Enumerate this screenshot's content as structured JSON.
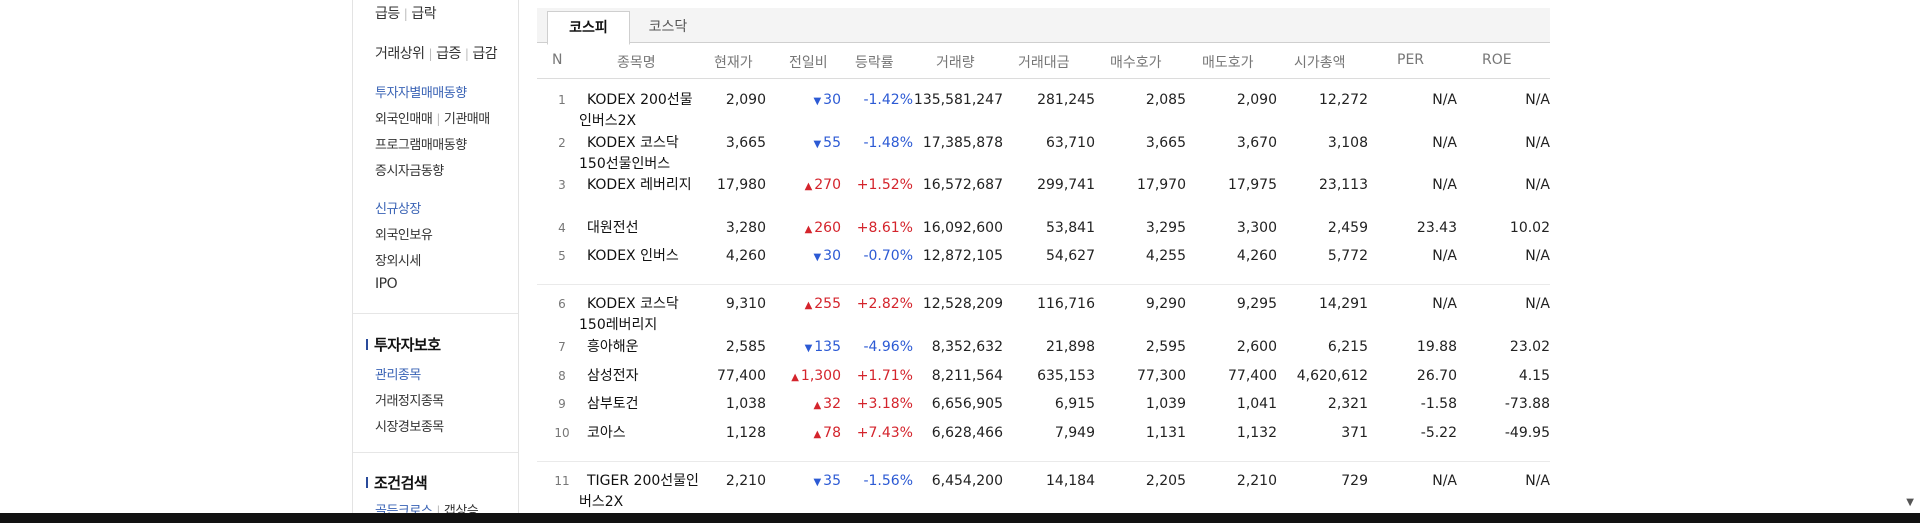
{
  "sidebar": {
    "row1": [
      "급등",
      "급락"
    ],
    "row2": [
      "거래상위",
      "급증",
      "급감"
    ],
    "investor": "투자자별매매동향",
    "row_foreign": [
      "외국인매매",
      "기관매매"
    ],
    "program": "프로그램매매동향",
    "deposit": "증시자금동향",
    "new_listing": "신규상장",
    "foreign_hold": "외국인보유",
    "otc": "장외시세",
    "ipo": "IPO",
    "sec_protect": "투자자보호",
    "managed": "관리종목",
    "halted": "거래정지종목",
    "warning": "시장경보종목",
    "sec_cond": "조건검색",
    "bottom_row": [
      "골든크로스",
      "갭상승"
    ]
  },
  "tabs": [
    "코스피",
    "코스닥"
  ],
  "columns": [
    "N",
    "종목명",
    "현재가",
    "전일비",
    "등락률",
    "거래량",
    "거래대금",
    "매수호가",
    "매도호가",
    "시가총액",
    "PER",
    "ROE"
  ],
  "rows": [
    {
      "n": "1",
      "name": "KODEX 200선물인버스2X",
      "price": "2,090",
      "dir": "down",
      "chg": "30",
      "rate": "-1.42%",
      "vol": "135,581,247",
      "amt": "281,245",
      "bid": "2,085",
      "ask": "2,090",
      "cap": "12,272",
      "per": "N/A",
      "roe": "N/A"
    },
    {
      "n": "2",
      "name": "KODEX 코스닥150선물인버스",
      "price": "3,665",
      "dir": "down",
      "chg": "55",
      "rate": "-1.48%",
      "vol": "17,385,878",
      "amt": "63,710",
      "bid": "3,665",
      "ask": "3,670",
      "cap": "3,108",
      "per": "N/A",
      "roe": "N/A"
    },
    {
      "n": "3",
      "name": "KODEX 레버리지",
      "price": "17,980",
      "dir": "up",
      "chg": "270",
      "rate": "+1.52%",
      "vol": "16,572,687",
      "amt": "299,741",
      "bid": "17,970",
      "ask": "17,975",
      "cap": "23,113",
      "per": "N/A",
      "roe": "N/A"
    },
    {
      "n": "4",
      "name": "대원전선",
      "price": "3,280",
      "dir": "up",
      "chg": "260",
      "rate": "+8.61%",
      "vol": "16,092,600",
      "amt": "53,841",
      "bid": "3,295",
      "ask": "3,300",
      "cap": "2,459",
      "per": "23.43",
      "roe": "10.02"
    },
    {
      "n": "5",
      "name": "KODEX 인버스",
      "price": "4,260",
      "dir": "down",
      "chg": "30",
      "rate": "-0.70%",
      "vol": "12,872,105",
      "amt": "54,627",
      "bid": "4,255",
      "ask": "4,260",
      "cap": "5,772",
      "per": "N/A",
      "roe": "N/A"
    },
    {
      "n": "6",
      "name": "KODEX 코스닥150레버리지",
      "price": "9,310",
      "dir": "up",
      "chg": "255",
      "rate": "+2.82%",
      "vol": "12,528,209",
      "amt": "116,716",
      "bid": "9,290",
      "ask": "9,295",
      "cap": "14,291",
      "per": "N/A",
      "roe": "N/A"
    },
    {
      "n": "7",
      "name": "흥아해운",
      "price": "2,585",
      "dir": "down",
      "chg": "135",
      "rate": "-4.96%",
      "vol": "8,352,632",
      "amt": "21,898",
      "bid": "2,595",
      "ask": "2,600",
      "cap": "6,215",
      "per": "19.88",
      "roe": "23.02"
    },
    {
      "n": "8",
      "name": "삼성전자",
      "price": "77,400",
      "dir": "up",
      "chg": "1,300",
      "rate": "+1.71%",
      "vol": "8,211,564",
      "amt": "635,153",
      "bid": "77,300",
      "ask": "77,400",
      "cap": "4,620,612",
      "per": "26.70",
      "roe": "4.15"
    },
    {
      "n": "9",
      "name": "삼부토건",
      "price": "1,038",
      "dir": "up",
      "chg": "32",
      "rate": "+3.18%",
      "vol": "6,656,905",
      "amt": "6,915",
      "bid": "1,039",
      "ask": "1,041",
      "cap": "2,321",
      "per": "-1.58",
      "roe": "-73.88"
    },
    {
      "n": "10",
      "name": "코아스",
      "price": "1,128",
      "dir": "up",
      "chg": "78",
      "rate": "+7.43%",
      "vol": "6,628,466",
      "amt": "7,949",
      "bid": "1,131",
      "ask": "1,132",
      "cap": "371",
      "per": "-5.22",
      "roe": "-49.95"
    },
    {
      "n": "11",
      "name": "TIGER 200선물인버스2X",
      "price": "2,210",
      "dir": "down",
      "chg": "35",
      "rate": "-1.56%",
      "vol": "6,454,200",
      "amt": "14,184",
      "bid": "2,205",
      "ask": "2,210",
      "cap": "729",
      "per": "N/A",
      "roe": "N/A"
    }
  ],
  "colors": {
    "up": "#d4242c",
    "down": "#2c5ad4",
    "link": "#3a63b5"
  },
  "icons": {
    "up": "triangle-up-icon",
    "down": "triangle-down-icon"
  }
}
